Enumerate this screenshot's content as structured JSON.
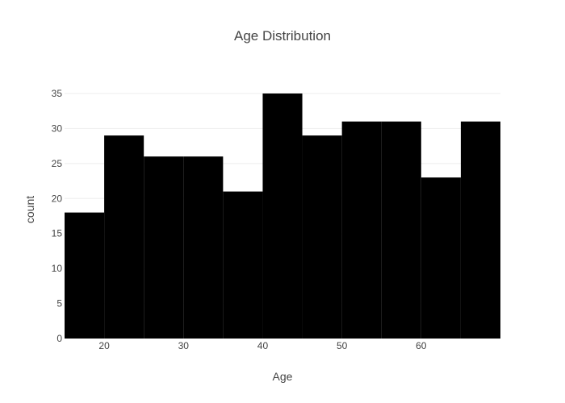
{
  "chart_data": {
    "type": "bar",
    "subtype": "histogram",
    "title": "Age Distribution",
    "xlabel": "Age",
    "ylabel": "count",
    "bin_edges": [
      15,
      20,
      25,
      30,
      35,
      40,
      45,
      50,
      55,
      60,
      65,
      70
    ],
    "values": [
      18,
      29,
      26,
      26,
      21,
      35,
      29,
      31,
      31,
      23,
      31
    ],
    "xlim": [
      15,
      70
    ],
    "ylim": [
      0,
      35
    ],
    "x_ticks": [
      20,
      30,
      40,
      50,
      60
    ],
    "y_ticks": [
      0,
      5,
      10,
      15,
      20,
      25,
      30,
      35
    ],
    "bar_color": "#000000",
    "gridlines": true,
    "legend": "none"
  }
}
